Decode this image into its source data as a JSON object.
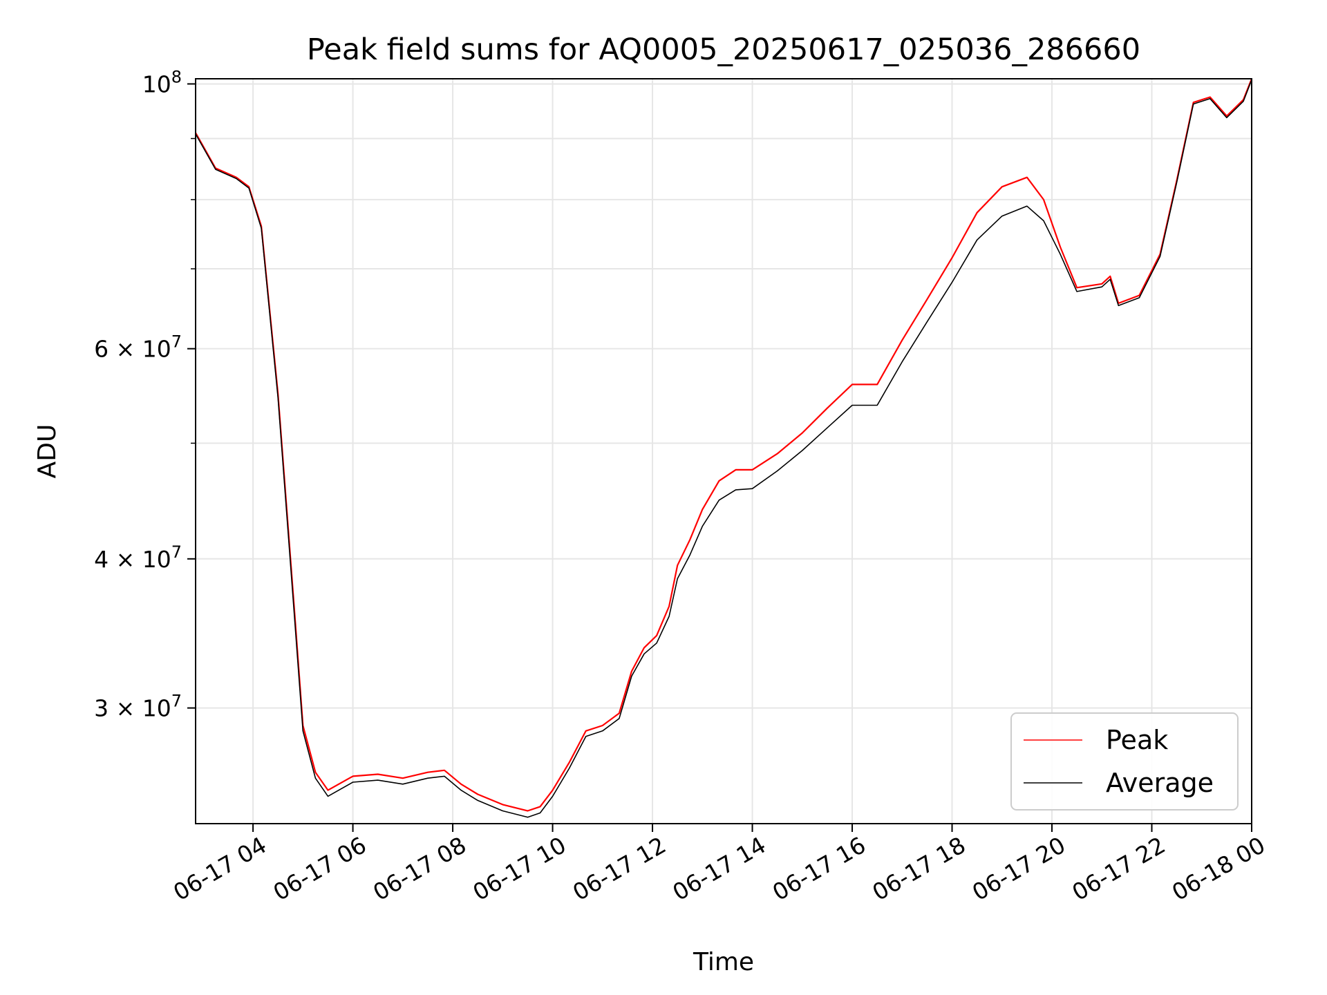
{
  "chart_data": {
    "type": "line",
    "title": "Peak field sums for AQ0005_20250617_025036_286660",
    "xlabel": "Time",
    "ylabel": "ADU",
    "y_scale": "log",
    "grid": true,
    "legend_position": "lower-right",
    "xlim": [
      "2025-06-17 02:51",
      "2025-06-18 00:00"
    ],
    "ylim": [
      24000000,
      101000000
    ],
    "x_ticks": [
      {
        "value": "2025-06-17 04:00",
        "label": "06-17 04"
      },
      {
        "value": "2025-06-17 06:00",
        "label": "06-17 06"
      },
      {
        "value": "2025-06-17 08:00",
        "label": "06-17 08"
      },
      {
        "value": "2025-06-17 10:00",
        "label": "06-17 10"
      },
      {
        "value": "2025-06-17 12:00",
        "label": "06-17 12"
      },
      {
        "value": "2025-06-17 14:00",
        "label": "06-17 14"
      },
      {
        "value": "2025-06-17 16:00",
        "label": "06-17 16"
      },
      {
        "value": "2025-06-17 18:00",
        "label": "06-17 18"
      },
      {
        "value": "2025-06-17 20:00",
        "label": "06-17 20"
      },
      {
        "value": "2025-06-17 22:00",
        "label": "06-17 22"
      },
      {
        "value": "2025-06-18 00:00",
        "label": "06-18 00"
      }
    ],
    "y_major_ticks": [
      {
        "value": 30000000,
        "mantissa": "3",
        "base": "10",
        "exp": "7"
      },
      {
        "value": 40000000,
        "mantissa": "4",
        "base": "10",
        "exp": "7"
      },
      {
        "value": 60000000,
        "mantissa": "6",
        "base": "10",
        "exp": "7"
      },
      {
        "value": 100000000,
        "mantissa": "",
        "base": "10",
        "exp": "8"
      }
    ],
    "y_minor_ticks": [
      50000000,
      70000000,
      80000000,
      90000000
    ],
    "series": [
      {
        "name": "Peak",
        "color": "#ff0000",
        "x": [
          "2025-06-17 02:51",
          "2025-06-17 03:15",
          "2025-06-17 03:40",
          "2025-06-17 03:55",
          "2025-06-17 04:10",
          "2025-06-17 04:30",
          "2025-06-17 04:50",
          "2025-06-17 05:00",
          "2025-06-17 05:15",
          "2025-06-17 05:30",
          "2025-06-17 06:00",
          "2025-06-17 06:30",
          "2025-06-17 07:00",
          "2025-06-17 07:30",
          "2025-06-17 07:50",
          "2025-06-17 08:10",
          "2025-06-17 08:30",
          "2025-06-17 09:00",
          "2025-06-17 09:30",
          "2025-06-17 09:45",
          "2025-06-17 10:00",
          "2025-06-17 10:20",
          "2025-06-17 10:40",
          "2025-06-17 11:00",
          "2025-06-17 11:20",
          "2025-06-17 11:35",
          "2025-06-17 11:50",
          "2025-06-17 12:05",
          "2025-06-17 12:20",
          "2025-06-17 12:30",
          "2025-06-17 12:45",
          "2025-06-17 13:00",
          "2025-06-17 13:20",
          "2025-06-17 13:40",
          "2025-06-17 14:00",
          "2025-06-17 14:30",
          "2025-06-17 15:00",
          "2025-06-17 15:30",
          "2025-06-17 16:00",
          "2025-06-17 16:30",
          "2025-06-17 17:00",
          "2025-06-17 17:30",
          "2025-06-17 18:00",
          "2025-06-17 18:30",
          "2025-06-17 19:00",
          "2025-06-17 19:30",
          "2025-06-17 19:50",
          "2025-06-17 20:10",
          "2025-06-17 20:30",
          "2025-06-17 21:00",
          "2025-06-17 21:10",
          "2025-06-17 21:20",
          "2025-06-17 21:45",
          "2025-06-17 22:10",
          "2025-06-17 22:30",
          "2025-06-17 22:50",
          "2025-06-17 23:10",
          "2025-06-17 23:30",
          "2025-06-17 23:50",
          "2025-06-18 00:00"
        ],
        "values": [
          91000000,
          85000000,
          83500000,
          82000000,
          76000000,
          55000000,
          36000000,
          29000000,
          26500000,
          25600000,
          26300000,
          26400000,
          26200000,
          26500000,
          26600000,
          25900000,
          25400000,
          24900000,
          24600000,
          24800000,
          25600000,
          27000000,
          28700000,
          29000000,
          29700000,
          32200000,
          33700000,
          34500000,
          36500000,
          39500000,
          41500000,
          44000000,
          46500000,
          47500000,
          47500000,
          49000000,
          51000000,
          53500000,
          56000000,
          56000000,
          61000000,
          66000000,
          71500000,
          78000000,
          82000000,
          83500000,
          80000000,
          73000000,
          67500000,
          68000000,
          69000000,
          65500000,
          66500000,
          72000000,
          83000000,
          96500000,
          97500000,
          94000000,
          97000000,
          101000000
        ]
      },
      {
        "name": "Average",
        "color": "#000000",
        "x": [
          "2025-06-17 02:51",
          "2025-06-17 03:15",
          "2025-06-17 03:40",
          "2025-06-17 03:55",
          "2025-06-17 04:10",
          "2025-06-17 04:30",
          "2025-06-17 04:50",
          "2025-06-17 05:00",
          "2025-06-17 05:15",
          "2025-06-17 05:30",
          "2025-06-17 06:00",
          "2025-06-17 06:30",
          "2025-06-17 07:00",
          "2025-06-17 07:30",
          "2025-06-17 07:50",
          "2025-06-17 08:10",
          "2025-06-17 08:30",
          "2025-06-17 09:00",
          "2025-06-17 09:30",
          "2025-06-17 09:45",
          "2025-06-17 10:00",
          "2025-06-17 10:20",
          "2025-06-17 10:40",
          "2025-06-17 11:00",
          "2025-06-17 11:20",
          "2025-06-17 11:35",
          "2025-06-17 11:50",
          "2025-06-17 12:05",
          "2025-06-17 12:20",
          "2025-06-17 12:30",
          "2025-06-17 12:45",
          "2025-06-17 13:00",
          "2025-06-17 13:20",
          "2025-06-17 13:40",
          "2025-06-17 14:00",
          "2025-06-17 14:30",
          "2025-06-17 15:00",
          "2025-06-17 15:30",
          "2025-06-17 16:00",
          "2025-06-17 16:30",
          "2025-06-17 17:00",
          "2025-06-17 17:30",
          "2025-06-17 18:00",
          "2025-06-17 18:30",
          "2025-06-17 19:00",
          "2025-06-17 19:30",
          "2025-06-17 19:50",
          "2025-06-17 20:10",
          "2025-06-17 20:30",
          "2025-06-17 21:00",
          "2025-06-17 21:10",
          "2025-06-17 21:20",
          "2025-06-17 21:45",
          "2025-06-17 22:10",
          "2025-06-17 22:30",
          "2025-06-17 22:50",
          "2025-06-17 23:10",
          "2025-06-17 23:30",
          "2025-06-17 23:50",
          "2025-06-18 00:00"
        ],
        "values": [
          90800000,
          84800000,
          83300000,
          81800000,
          75700000,
          54600000,
          35600000,
          28700000,
          26200000,
          25300000,
          26000000,
          26100000,
          25900000,
          26200000,
          26300000,
          25600000,
          25100000,
          24600000,
          24300000,
          24500000,
          25300000,
          26700000,
          28400000,
          28700000,
          29400000,
          31900000,
          33300000,
          34000000,
          35800000,
          38500000,
          40300000,
          42600000,
          44800000,
          45700000,
          45800000,
          47400000,
          49300000,
          51500000,
          53800000,
          53800000,
          58500000,
          63200000,
          68200000,
          74000000,
          77500000,
          79000000,
          76800000,
          72000000,
          67000000,
          67600000,
          68600000,
          65200000,
          66200000,
          71700000,
          82700000,
          96200000,
          97200000,
          93700000,
          96700000,
          100800000
        ]
      }
    ]
  }
}
